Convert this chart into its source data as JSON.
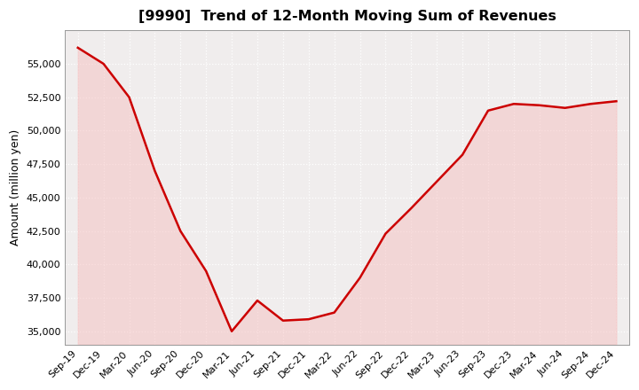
{
  "title": "[9990]  Trend of 12-Month Moving Sum of Revenues",
  "ylabel": "Amount (million yen)",
  "line_color": "#cc0000",
  "fill_color": "#f5c0c0",
  "fill_alpha": 0.5,
  "background_color": "#ffffff",
  "plot_bg_color": "#f0eded",
  "grid_color": "#ffffff",
  "ylim": [
    34000,
    57500
  ],
  "yticks": [
    35000,
    37500,
    40000,
    42500,
    45000,
    47500,
    50000,
    52500,
    55000
  ],
  "x_labels": [
    "Sep-19",
    "Dec-19",
    "Mar-20",
    "Jun-20",
    "Sep-20",
    "Dec-20",
    "Mar-21",
    "Jun-21",
    "Sep-21",
    "Dec-21",
    "Mar-22",
    "Jun-22",
    "Sep-22",
    "Dec-22",
    "Mar-23",
    "Jun-23",
    "Sep-23",
    "Dec-23",
    "Mar-24",
    "Jun-24",
    "Sep-24",
    "Dec-24"
  ],
  "y_values": [
    56200,
    55000,
    52500,
    47000,
    42500,
    39500,
    35000,
    37300,
    35800,
    35900,
    36400,
    39000,
    42300,
    44200,
    46200,
    48200,
    51500,
    52000,
    51900,
    51700,
    52000,
    52200
  ]
}
